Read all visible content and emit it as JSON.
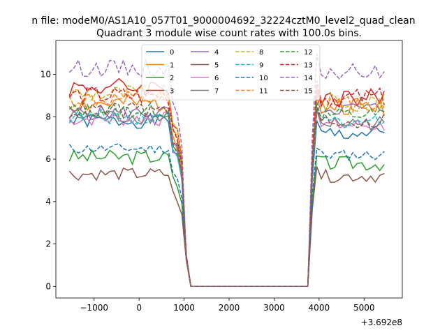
{
  "chart_data": {
    "type": "line",
    "suptitle": "n file: modeM0/AS1A10_057T01_9000004692_32224cztM0_level2_quad_clean",
    "title": "Quadrant 3 module wise count rates with 100.0s bins.",
    "xlabel": "",
    "ylabel": "",
    "x_offset_label": "+3.692e8",
    "xlim": [
      -1850,
      5850
    ],
    "ylim": [
      -0.55,
      11.6
    ],
    "xticks": [
      -1000,
      0,
      1000,
      2000,
      3000,
      4000,
      5000
    ],
    "xtick_labels": [
      "−1000",
      "0",
      "1000",
      "2000",
      "3000",
      "4000",
      "5000"
    ],
    "yticks": [
      0,
      2,
      4,
      6,
      8,
      10
    ],
    "ytick_labels": [
      "0",
      "2",
      "4",
      "6",
      "8",
      "10"
    ],
    "grid": false,
    "legend_position": "upper-center",
    "legend_columns": 4,
    "x": [
      -1550,
      -1450,
      -1350,
      -1250,
      -1150,
      -1050,
      -950,
      -850,
      -750,
      -650,
      -550,
      -450,
      -350,
      -250,
      -150,
      -50,
      50,
      150,
      250,
      350,
      450,
      550,
      650,
      750,
      850,
      950,
      1050,
      1150,
      1250,
      1350,
      1450,
      1550,
      1650,
      1750,
      1850,
      1950,
      2050,
      2150,
      2250,
      2350,
      2450,
      2550,
      2650,
      2750,
      2850,
      2950,
      3050,
      3150,
      3250,
      3350,
      3450,
      3550,
      3650,
      3750,
      3850,
      3950,
      4050,
      4150,
      4250,
      4350,
      4450,
      4550,
      4650,
      4750,
      4850,
      4950,
      5050,
      5150,
      5250,
      5350,
      5450
    ],
    "series": [
      {
        "name": "0",
        "color": "#1f77b4",
        "dash": "solid",
        "base_pre": 7.8,
        "base_post": 7.2,
        "amp": 0.35,
        "seed": 1
      },
      {
        "name": "1",
        "color": "#ff7f0e",
        "dash": "solid",
        "base_pre": 8.6,
        "base_post": 8.5,
        "amp": 0.45,
        "seed": 2
      },
      {
        "name": "2",
        "color": "#2ca02c",
        "dash": "solid",
        "base_pre": 6.1,
        "base_post": 5.8,
        "amp": 0.35,
        "seed": 3
      },
      {
        "name": "3",
        "color": "#d62728",
        "dash": "solid",
        "base_pre": 9.4,
        "base_post": 8.9,
        "amp": 0.45,
        "seed": 4
      },
      {
        "name": "4",
        "color": "#9467bd",
        "dash": "solid",
        "base_pre": 8.2,
        "base_post": 8.4,
        "amp": 0.35,
        "seed": 5
      },
      {
        "name": "5",
        "color": "#8c564b",
        "dash": "solid",
        "base_pre": 5.3,
        "base_post": 5.2,
        "amp": 0.3,
        "seed": 6
      },
      {
        "name": "6",
        "color": "#e377c2",
        "dash": "solid",
        "base_pre": 7.9,
        "base_post": 7.6,
        "amp": 0.35,
        "seed": 7
      },
      {
        "name": "7",
        "color": "#7f7f7f",
        "dash": "solid",
        "base_pre": 8.0,
        "base_post": 7.7,
        "amp": 0.35,
        "seed": 8
      },
      {
        "name": "8",
        "color": "#bcbd22",
        "dash": "dashed",
        "base_pre": 9.1,
        "base_post": 8.7,
        "amp": 0.45,
        "seed": 9
      },
      {
        "name": "9",
        "color": "#17becf",
        "dash": "dashed",
        "base_pre": 8.0,
        "base_post": 7.8,
        "amp": 0.35,
        "seed": 10
      },
      {
        "name": "10",
        "color": "#1f77b4",
        "dash": "dashed",
        "base_pre": 6.5,
        "base_post": 6.2,
        "amp": 0.25,
        "seed": 11
      },
      {
        "name": "11",
        "color": "#ff7f0e",
        "dash": "dashed",
        "base_pre": 8.8,
        "base_post": 8.6,
        "amp": 0.4,
        "seed": 12
      },
      {
        "name": "12",
        "color": "#2ca02c",
        "dash": "dashed",
        "base_pre": 8.3,
        "base_post": 8.1,
        "amp": 0.35,
        "seed": 13
      },
      {
        "name": "13",
        "color": "#d62728",
        "dash": "dashed",
        "base_pre": 9.0,
        "base_post": 8.9,
        "amp": 0.45,
        "seed": 14
      },
      {
        "name": "14",
        "color": "#9467bd",
        "dash": "dashed",
        "base_pre": 10.3,
        "base_post": 10.1,
        "amp": 0.4,
        "seed": 15
      },
      {
        "name": "15",
        "color": "#8c564b",
        "dash": "dashed",
        "base_pre": 8.3,
        "base_post": 7.8,
        "amp": 0.4,
        "seed": 16
      }
    ],
    "gap_start_x": 1150,
    "gap_end_x": 3800,
    "gap_value": 0
  }
}
